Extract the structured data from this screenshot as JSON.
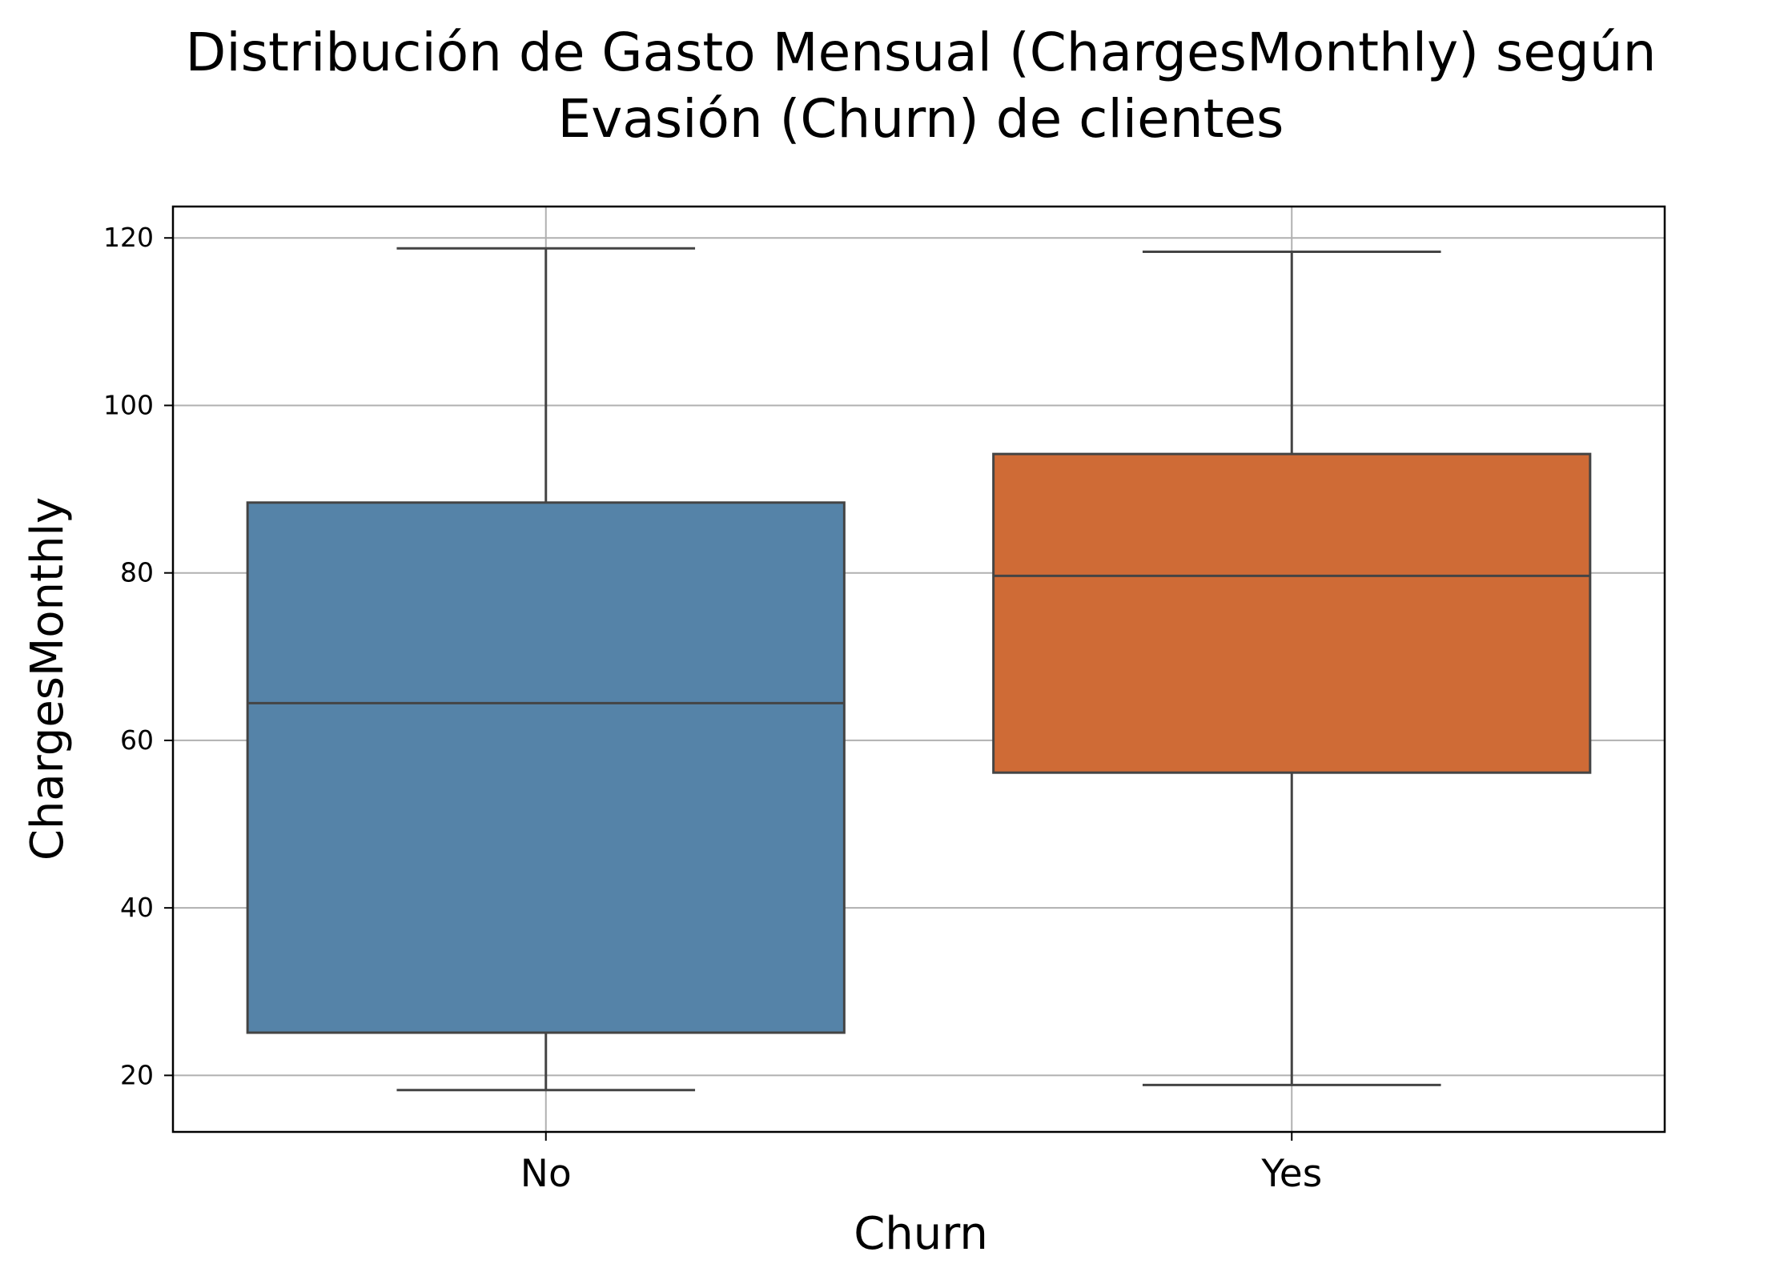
{
  "chart_data": {
    "type": "box",
    "title_lines": [
      "Distribución de Gasto Mensual (ChargesMonthly) según",
      "Evasión (Churn) de clientes"
    ],
    "xlabel": "Churn",
    "ylabel": "ChargesMonthly",
    "categories": [
      "No",
      "Yes"
    ],
    "ylim": [
      13.25,
      123.75
    ],
    "yticks": [
      20,
      40,
      60,
      80,
      100,
      120
    ],
    "grid": true,
    "boxes": [
      {
        "category": "No",
        "whisker_low": 18.25,
        "q1": 25.1,
        "median": 64.45,
        "q3": 88.4,
        "whisker_high": 118.75,
        "color": "#5583a8"
      },
      {
        "category": "Yes",
        "whisker_low": 18.85,
        "q1": 56.15,
        "median": 79.65,
        "q3": 94.2,
        "whisker_high": 118.35,
        "color": "#cf6b36"
      }
    ],
    "colors": {
      "grid": "#b0b0b0",
      "box_edge": "#444444",
      "frame": "#000000"
    }
  }
}
